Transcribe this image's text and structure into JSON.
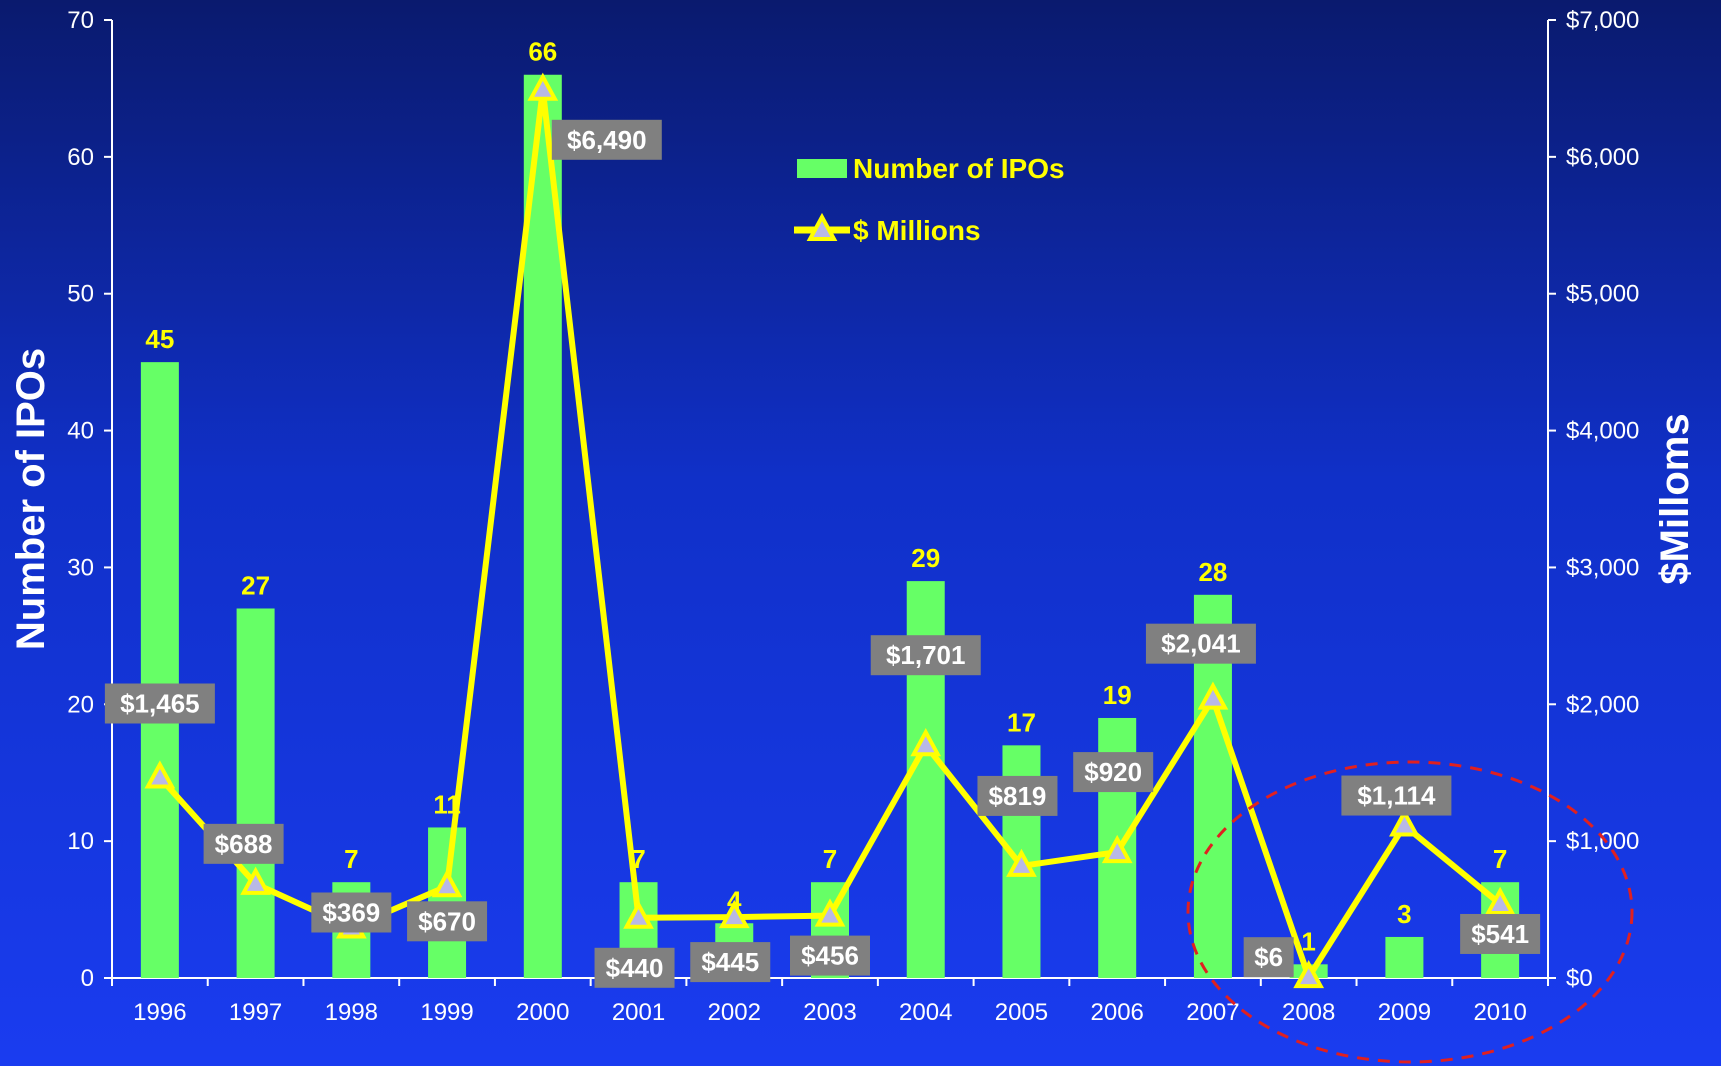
{
  "chart_data": {
    "type": "bar",
    "categories": [
      "1996",
      "1997",
      "1998",
      "1999",
      "2000",
      "2001",
      "2002",
      "2003",
      "2004",
      "2005",
      "2006",
      "2007",
      "2008",
      "2009",
      "2010"
    ],
    "series": [
      {
        "name": "Number of IPOs",
        "type": "bar",
        "axis": "left",
        "color": "#66ff66",
        "values": [
          45,
          27,
          7,
          11,
          66,
          7,
          4,
          7,
          29,
          17,
          19,
          28,
          1,
          3,
          7
        ],
        "labels": [
          "45",
          "27",
          "7",
          "11",
          "66",
          "7",
          "4",
          "7",
          "29",
          "17",
          "19",
          "28",
          "1",
          "3",
          "7"
        ]
      },
      {
        "name": "$ Millions",
        "type": "line",
        "axis": "right",
        "color": "#ffff00",
        "values": [
          1465,
          688,
          369,
          670,
          6490,
          440,
          445,
          456,
          1701,
          819,
          920,
          2041,
          6,
          1114,
          541
        ],
        "labels": [
          "$1,465",
          "$688",
          "$369",
          "$670",
          "$6,490",
          "$440",
          "$445",
          "$456",
          "$1,701",
          "$819",
          "$920",
          "$2,041",
          "$6",
          "$1,114",
          "$541"
        ]
      }
    ],
    "ylabel": "Number of IPOs",
    "y2label": "$Milloms",
    "ylim": [
      0,
      70
    ],
    "y2lim": [
      0,
      7000
    ],
    "yticks": [
      "0",
      "10",
      "20",
      "30",
      "40",
      "50",
      "60",
      "70"
    ],
    "y2ticks": [
      "$0",
      "$1,000",
      "$2,000",
      "$3,000",
      "$4,000",
      "$5,000",
      "$6,000",
      "$7,000"
    ],
    "legend_position": "top-center",
    "grid": false,
    "annotation": "red dashed ellipse around 2008-2010",
    "label_box_color": "#808080"
  }
}
